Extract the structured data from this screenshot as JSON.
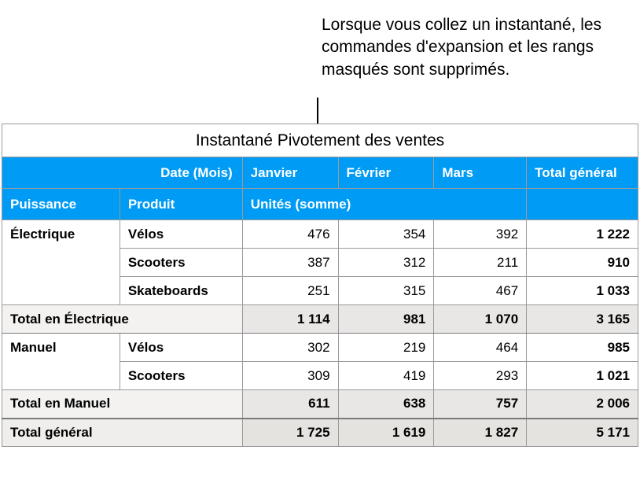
{
  "callout": {
    "text": "Lorsque vous collez un instantané, les commandes d'expansion et les rangs masqués sont supprimés."
  },
  "table": {
    "title": "Instantané Pivotement des ventes",
    "headers": {
      "date_label": "Date (Mois)",
      "months": [
        "Janvier",
        "Février",
        "Mars"
      ],
      "grand_total": "Total général",
      "power": "Puissance",
      "product": "Produit",
      "units": "Unités (somme)"
    },
    "groups": [
      {
        "category": "Électrique",
        "rows": [
          {
            "product": "Vélos",
            "vals": [
              "476",
              "354",
              "392"
            ],
            "total": "1 222"
          },
          {
            "product": "Scooters",
            "vals": [
              "387",
              "312",
              "211"
            ],
            "total": "910"
          },
          {
            "product": "Skateboards",
            "vals": [
              "251",
              "315",
              "467"
            ],
            "total": "1 033"
          }
        ],
        "subtotal": {
          "label": "Total en Électrique",
          "vals": [
            "1 114",
            "981",
            "1 070"
          ],
          "total": "3 165"
        }
      },
      {
        "category": "Manuel",
        "rows": [
          {
            "product": "Vélos",
            "vals": [
              "302",
              "219",
              "464"
            ],
            "total": "985"
          },
          {
            "product": "Scooters",
            "vals": [
              "309",
              "419",
              "293"
            ],
            "total": "1 021"
          }
        ],
        "subtotal": {
          "label": "Total en Manuel",
          "vals": [
            "611",
            "638",
            "757"
          ],
          "total": "2 006"
        }
      }
    ],
    "grand_total_row": {
      "label": "Total général",
      "vals": [
        "1 725",
        "1 619",
        "1 827"
      ],
      "total": "5 171"
    }
  },
  "colors": {
    "header_bg": "#009bf4",
    "header_text": "#ffffff",
    "subtotal_bg": "#e9e7e5",
    "border": "#9a9a9a"
  }
}
